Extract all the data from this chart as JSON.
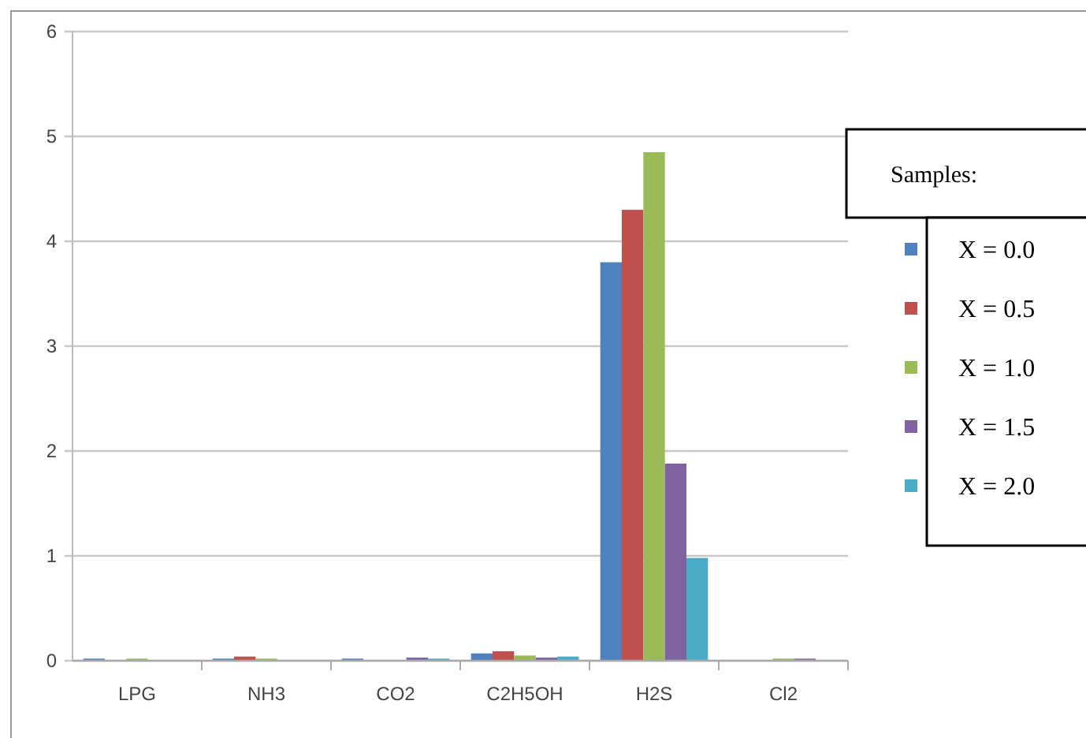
{
  "chart_data": {
    "type": "bar",
    "categories": [
      "LPG",
      "NH3",
      "CO2",
      "C2H5OH",
      "H2S",
      "Cl2"
    ],
    "series": [
      {
        "name": "X = 0.0",
        "color": "#4f81bd",
        "values": [
          0.02,
          0.02,
          0.02,
          0.07,
          3.8,
          0
        ]
      },
      {
        "name": "X = 0.5",
        "color": "#c0504d",
        "values": [
          0,
          0.04,
          0,
          0.09,
          4.3,
          0
        ]
      },
      {
        "name": "X = 1.0",
        "color": "#9bbb59",
        "values": [
          0.02,
          0.02,
          0,
          0.05,
          4.85,
          0.02
        ]
      },
      {
        "name": "X = 1.5",
        "color": "#8064a2",
        "values": [
          0,
          0,
          0.03,
          0.03,
          1.88,
          0.02
        ]
      },
      {
        "name": "X = 2.0",
        "color": "#4bacc6",
        "values": [
          0,
          0,
          0.02,
          0.04,
          0.98,
          0
        ]
      }
    ],
    "ylim": [
      0,
      6
    ],
    "yticks": [
      0,
      1,
      2,
      3,
      4,
      5,
      6
    ],
    "grid": "y",
    "legend": "right",
    "legend_title": "Samples:"
  }
}
